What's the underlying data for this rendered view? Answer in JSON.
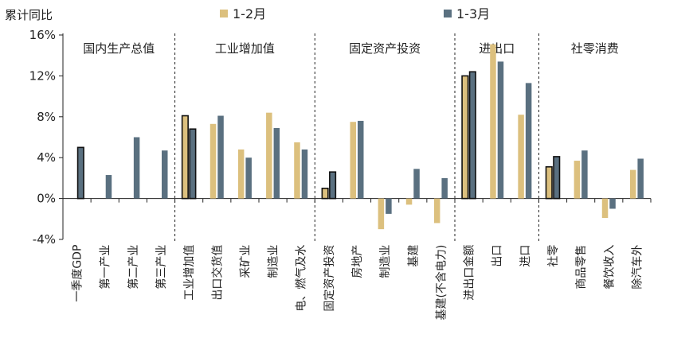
{
  "chart_data": {
    "type": "bar",
    "ylabel": "累计同比",
    "ylim": [
      -4,
      16
    ],
    "yticks": [
      -4,
      0,
      4,
      8,
      12,
      16
    ],
    "ytick_labels": [
      "-4%",
      "0%",
      "4%",
      "8%",
      "12%",
      "16%"
    ],
    "colors": {
      "s1": "#dcc07e",
      "s2": "#5a7080"
    },
    "series": [
      {
        "name": "1-2月",
        "values": [
          null,
          null,
          null,
          null,
          8.1,
          7.3,
          4.8,
          8.4,
          5.5,
          1.0,
          7.5,
          -3.0,
          -0.6,
          -2.4,
          12.0,
          15.1,
          8.2,
          3.1,
          3.7,
          -1.9,
          2.8
        ]
      },
      {
        "name": "1-3月",
        "values": [
          5.0,
          2.3,
          6.0,
          4.7,
          6.8,
          8.1,
          4.0,
          6.9,
          4.8,
          2.6,
          7.6,
          -1.5,
          2.9,
          2.0,
          12.4,
          13.4,
          11.3,
          4.1,
          4.7,
          -1.0,
          3.9
        ]
      }
    ],
    "highlighted_categories": [
      "一季度GDP",
      "工业增加值",
      "固定资产投资",
      "进出口金额",
      "社零"
    ],
    "categories": [
      "一季度GDP",
      "第一产业",
      "第二产业",
      "第三产业",
      "工业增加值",
      "出口交货值",
      "采矿业",
      "制造业",
      "电、燃气及水",
      "固定资产投资",
      "房地产",
      "制造业",
      "基建",
      "基建(不含电力)",
      "进出口金额",
      "出口",
      "进口",
      "社零",
      "商品零售",
      "餐饮收入",
      "除汽车外"
    ],
    "groups": [
      {
        "label": "国内生产总值",
        "start": 0,
        "end": 3
      },
      {
        "label": "工业增加值",
        "start": 4,
        "end": 8
      },
      {
        "label": "固定资产投资",
        "start": 9,
        "end": 13
      },
      {
        "label": "进出口",
        "start": 14,
        "end": 16
      },
      {
        "label": "社零消费",
        "start": 17,
        "end": 20
      }
    ]
  }
}
